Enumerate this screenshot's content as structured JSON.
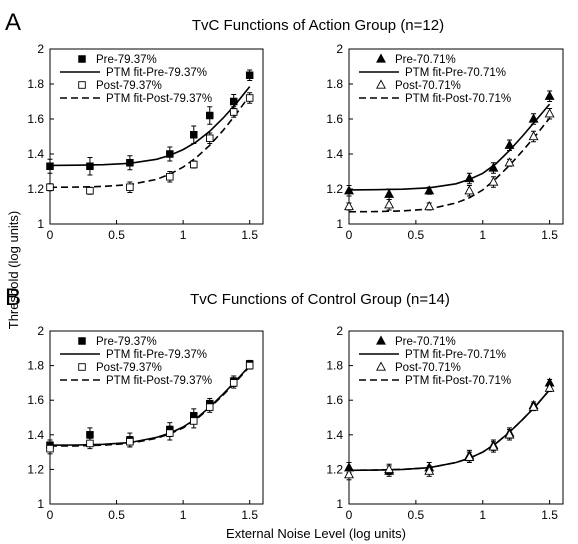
{
  "figure": {
    "panel_a_letter": "A",
    "panel_b_letter": "B",
    "title_a": "TvC Functions of Action Group (n=12)",
    "title_b": "TvC Functions of Control Group (n=14)",
    "ylabel": "Threshold (log units)",
    "xlabel": "External Noise Level (log units)"
  },
  "chart_data": [
    {
      "type": "scatter",
      "group": "Action Group (n=12)",
      "xlim": [
        0,
        1.6
      ],
      "ylim": [
        1,
        2
      ],
      "xticks": [
        0,
        0.5,
        1,
        1.5
      ],
      "yticks": [
        1,
        1.2,
        1.4,
        1.6,
        1.8,
        2
      ],
      "marker": "square",
      "legend": [
        "Pre-79.37%",
        "PTM fit-Pre-79.37%",
        "Post-79.37%",
        "PTM fit-Post-79.37%"
      ],
      "x": [
        0,
        0.3,
        0.6,
        0.9,
        1.08,
        1.2,
        1.38,
        1.5
      ],
      "series": [
        {
          "name": "Pre-79.37%",
          "filled": true,
          "values": [
            1.33,
            1.33,
            1.35,
            1.4,
            1.51,
            1.62,
            1.7,
            1.85
          ],
          "err": [
            0.04,
            0.05,
            0.04,
            0.04,
            0.05,
            0.05,
            0.04,
            0.03
          ]
        },
        {
          "name": "Post-79.37%",
          "filled": false,
          "values": [
            1.21,
            1.19,
            1.21,
            1.27,
            1.34,
            1.49,
            1.64,
            1.72
          ],
          "err": [
            0.02,
            0.02,
            0.03,
            0.03,
            0.02,
            0.03,
            0.03,
            0.03
          ]
        }
      ],
      "fits": [
        {
          "name": "PTM fit-Pre-79.37%",
          "style": "solid",
          "x": [
            0,
            0.2,
            0.4,
            0.6,
            0.8,
            0.9,
            1.0,
            1.1,
            1.2,
            1.3,
            1.4,
            1.5
          ],
          "y": [
            1.335,
            1.336,
            1.339,
            1.347,
            1.37,
            1.392,
            1.425,
            1.47,
            1.53,
            1.605,
            1.69,
            1.785
          ]
        },
        {
          "name": "PTM fit-Post-79.37%",
          "style": "dashed",
          "x": [
            0,
            0.2,
            0.4,
            0.6,
            0.8,
            0.9,
            1.0,
            1.1,
            1.2,
            1.3,
            1.4,
            1.5
          ],
          "y": [
            1.21,
            1.211,
            1.215,
            1.225,
            1.255,
            1.285,
            1.325,
            1.38,
            1.45,
            1.535,
            1.63,
            1.735
          ]
        }
      ]
    },
    {
      "type": "scatter",
      "group": "Action Group (n=12)",
      "xlim": [
        0,
        1.6
      ],
      "ylim": [
        1,
        2
      ],
      "xticks": [
        0,
        0.5,
        1,
        1.5
      ],
      "yticks": [
        1,
        1.2,
        1.4,
        1.6,
        1.8,
        2
      ],
      "marker": "triangle",
      "legend": [
        "Pre-70.71%",
        "PTM fit-Pre-70.71%",
        "Post-70.71%",
        "PTM fit-Post-70.71%"
      ],
      "x": [
        0,
        0.3,
        0.6,
        0.9,
        1.08,
        1.2,
        1.38,
        1.5
      ],
      "series": [
        {
          "name": "Pre-70.71%",
          "filled": true,
          "values": [
            1.19,
            1.17,
            1.19,
            1.26,
            1.32,
            1.45,
            1.6,
            1.73
          ],
          "err": [
            0.03,
            0.03,
            0.02,
            0.03,
            0.03,
            0.03,
            0.03,
            0.03
          ]
        },
        {
          "name": "Post-70.71%",
          "filled": false,
          "values": [
            1.1,
            1.11,
            1.1,
            1.19,
            1.24,
            1.35,
            1.5,
            1.63
          ],
          "err": [
            0.02,
            0.03,
            0.02,
            0.03,
            0.03,
            0.02,
            0.03,
            0.03
          ]
        }
      ],
      "fits": [
        {
          "name": "PTM fit-Pre-70.71%",
          "style": "solid",
          "x": [
            0,
            0.2,
            0.4,
            0.6,
            0.8,
            0.9,
            1.0,
            1.1,
            1.2,
            1.3,
            1.4,
            1.5
          ],
          "y": [
            1.195,
            1.196,
            1.199,
            1.207,
            1.23,
            1.255,
            1.29,
            1.345,
            1.42,
            1.505,
            1.595,
            1.685
          ]
        },
        {
          "name": "PTM fit-Post-70.71%",
          "style": "dashed",
          "x": [
            0,
            0.2,
            0.4,
            0.6,
            0.8,
            0.9,
            1.0,
            1.1,
            1.2,
            1.3,
            1.4,
            1.5
          ],
          "y": [
            1.07,
            1.071,
            1.075,
            1.085,
            1.12,
            1.15,
            1.195,
            1.26,
            1.335,
            1.42,
            1.51,
            1.605
          ]
        }
      ]
    },
    {
      "type": "scatter",
      "group": "Control Group (n=14)",
      "xlim": [
        0,
        1.6
      ],
      "ylim": [
        1,
        2
      ],
      "xticks": [
        0,
        0.5,
        1,
        1.5
      ],
      "yticks": [
        1,
        1.2,
        1.4,
        1.6,
        1.8,
        2
      ],
      "marker": "square",
      "legend": [
        "Pre-79.37%",
        "PTM fit-Pre-79.37%",
        "Post-79.37%",
        "PTM fit-Post-79.37%"
      ],
      "x": [
        0,
        0.3,
        0.6,
        0.9,
        1.08,
        1.2,
        1.38,
        1.5
      ],
      "series": [
        {
          "name": "Pre-79.37%",
          "filled": true,
          "values": [
            1.34,
            1.4,
            1.37,
            1.43,
            1.51,
            1.58,
            1.71,
            1.81
          ],
          "err": [
            0.03,
            0.04,
            0.04,
            0.04,
            0.04,
            0.03,
            0.03,
            0.02
          ]
        },
        {
          "name": "Post-79.37%",
          "filled": false,
          "values": [
            1.32,
            1.35,
            1.36,
            1.41,
            1.48,
            1.56,
            1.7,
            1.8
          ],
          "err": [
            0.03,
            0.03,
            0.03,
            0.04,
            0.04,
            0.03,
            0.03,
            0.02
          ]
        }
      ],
      "fits": [
        {
          "name": "PTM fit-Pre-79.37%",
          "style": "solid",
          "x": [
            0,
            0.2,
            0.4,
            0.6,
            0.8,
            0.9,
            1.0,
            1.1,
            1.2,
            1.3,
            1.4,
            1.5
          ],
          "y": [
            1.34,
            1.341,
            1.345,
            1.355,
            1.385,
            1.41,
            1.445,
            1.495,
            1.56,
            1.635,
            1.715,
            1.8
          ]
        },
        {
          "name": "PTM fit-Post-79.37%",
          "style": "dashed",
          "x": [
            0,
            0.2,
            0.4,
            0.6,
            0.8,
            0.9,
            1.0,
            1.1,
            1.2,
            1.3,
            1.4,
            1.5
          ],
          "y": [
            1.335,
            1.336,
            1.34,
            1.35,
            1.38,
            1.405,
            1.44,
            1.49,
            1.555,
            1.63,
            1.71,
            1.795
          ]
        }
      ]
    },
    {
      "type": "scatter",
      "group": "Control Group (n=14)",
      "xlim": [
        0,
        1.6
      ],
      "ylim": [
        1,
        2
      ],
      "xticks": [
        0,
        0.5,
        1,
        1.5
      ],
      "yticks": [
        1,
        1.2,
        1.4,
        1.6,
        1.8,
        2
      ],
      "marker": "triangle",
      "legend": [
        "Pre-70.71%",
        "PTM fit-Pre-70.71%",
        "Post-70.71%",
        "PTM fit-Post-70.71%"
      ],
      "x": [
        0,
        0.3,
        0.6,
        0.9,
        1.08,
        1.2,
        1.38,
        1.5
      ],
      "series": [
        {
          "name": "Pre-70.71%",
          "filled": true,
          "values": [
            1.21,
            1.19,
            1.21,
            1.28,
            1.34,
            1.41,
            1.57,
            1.7
          ],
          "err": [
            0.03,
            0.03,
            0.03,
            0.03,
            0.03,
            0.03,
            0.02,
            0.02
          ]
        },
        {
          "name": "Post-70.71%",
          "filled": false,
          "values": [
            1.17,
            1.2,
            1.19,
            1.27,
            1.33,
            1.4,
            1.56,
            1.67
          ],
          "err": [
            0.03,
            0.03,
            0.03,
            0.03,
            0.03,
            0.03,
            0.02,
            0.02
          ]
        }
      ],
      "fits": [
        {
          "name": "PTM fit-Pre-70.71%",
          "style": "solid",
          "x": [
            0,
            0.2,
            0.4,
            0.6,
            0.8,
            0.9,
            1.0,
            1.1,
            1.2,
            1.3,
            1.4,
            1.5
          ],
          "y": [
            1.195,
            1.196,
            1.2,
            1.21,
            1.24,
            1.265,
            1.3,
            1.35,
            1.415,
            1.49,
            1.57,
            1.66
          ]
        },
        {
          "name": "PTM fit-Post-70.71%",
          "style": "dashed",
          "x": [
            0,
            0.2,
            0.4,
            0.6,
            0.8,
            0.9,
            1.0,
            1.1,
            1.2,
            1.3,
            1.4,
            1.5
          ],
          "y": [
            1.195,
            1.196,
            1.2,
            1.21,
            1.24,
            1.265,
            1.3,
            1.35,
            1.415,
            1.49,
            1.57,
            1.66
          ]
        }
      ]
    }
  ]
}
